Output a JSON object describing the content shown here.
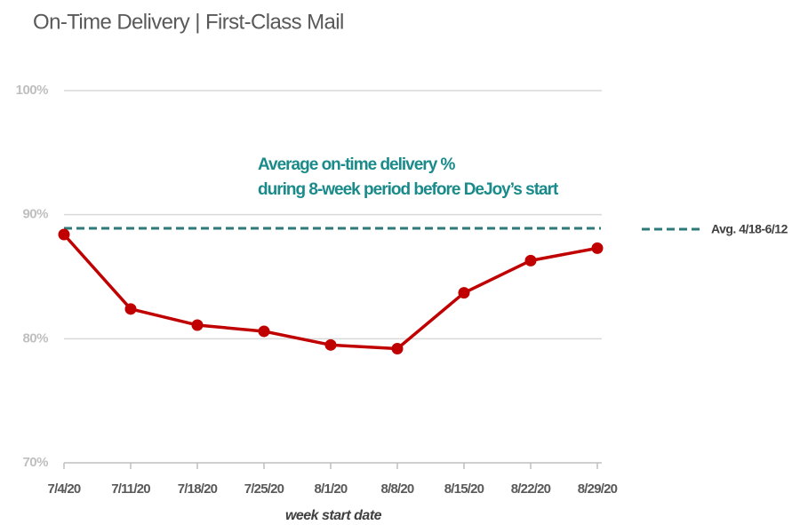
{
  "chart_data": {
    "type": "line",
    "title": "On-Time Delivery | First-Class Mail",
    "x_label": "week start date",
    "categories": [
      "7/4/20",
      "7/11/20",
      "7/18/20",
      "7/25/20",
      "8/1/20",
      "8/8/20",
      "8/15/20",
      "8/22/20",
      "8/29/20"
    ],
    "series": [
      {
        "name": "On-Time Delivery",
        "color": "#c00000",
        "values": [
          88.4,
          82.4,
          81.1,
          80.6,
          79.5,
          79.2,
          83.7,
          86.3,
          87.3
        ]
      }
    ],
    "reference_line": {
      "value": 88.9,
      "label": "Avg. 4/18-6/12",
      "color": "#2e7a7a"
    },
    "annotation": [
      "Average on-time delivery %",
      "during 8-week period before DeJoy’s start"
    ],
    "annotation_color": "#1a8a8a",
    "ylim": [
      70,
      100
    ],
    "yticks": [
      {
        "value": 70,
        "label": "70%"
      },
      {
        "value": 80,
        "label": "80%"
      },
      {
        "value": 90,
        "label": "90%"
      },
      {
        "value": 100,
        "label": "100%"
      }
    ],
    "grid": true
  }
}
